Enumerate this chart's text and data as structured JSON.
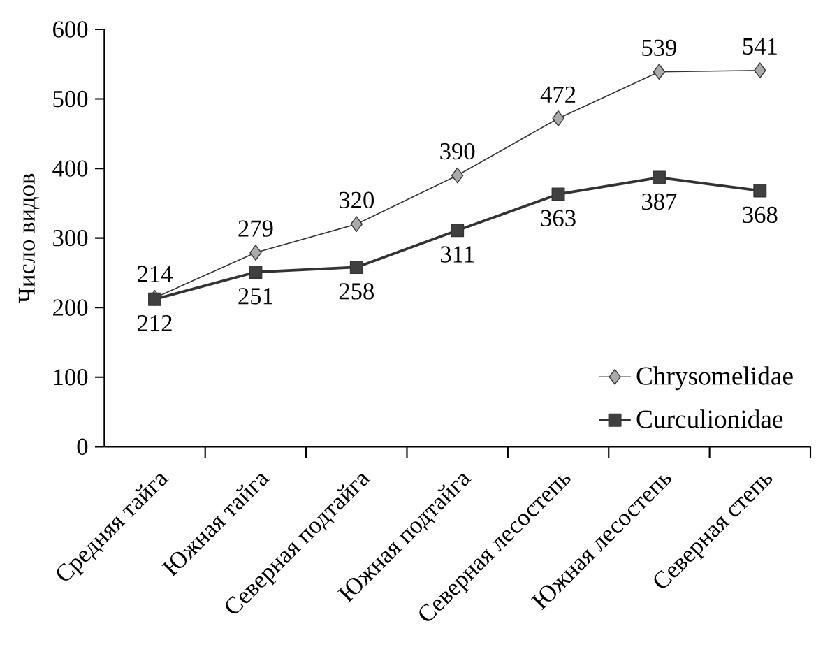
{
  "chart_data": {
    "type": "line",
    "ylabel": "Число видов",
    "categories": [
      "Средняя тайга",
      "Южная тайга",
      "Северная подтайга",
      "Южная подтайга",
      "Северная лесостепь",
      "Южная лесостепь",
      "Северная степь"
    ],
    "series": [
      {
        "name": "Chrysomelidae",
        "color": "#aaaaaa",
        "marker": "diamond",
        "values": [
          214,
          279,
          320,
          390,
          472,
          539,
          541
        ]
      },
      {
        "name": "Curculionidae",
        "color": "#404040",
        "marker": "square",
        "values": [
          212,
          251,
          258,
          311,
          363,
          387,
          368
        ]
      }
    ],
    "ylim": [
      0,
      600
    ],
    "yticks": [
      0,
      100,
      200,
      300,
      400,
      500,
      600
    ],
    "data_labels": true,
    "legend": "bottom right",
    "grid": false
  }
}
